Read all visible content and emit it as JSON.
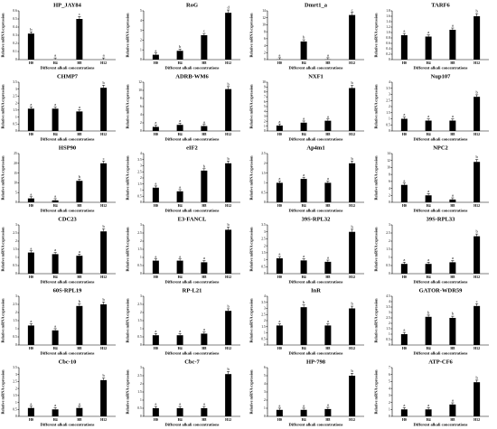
{
  "common": {
    "ylabel": "Relative mRNA expression",
    "xlabel": "Different alkali concentrations",
    "categories": [
      "H0",
      "H4",
      "H8",
      "H12"
    ]
  },
  "chart_data": [
    {
      "type": "bar",
      "title": "HP_JAY84",
      "ylim": [
        0,
        0.6
      ],
      "yticks": [
        "0",
        "0.1",
        "0.2",
        "0.3",
        "0.4",
        "0.5",
        "0.6"
      ],
      "values": [
        0.32,
        0.0,
        0.5,
        0.0
      ],
      "letters": [
        "b",
        "a",
        "c",
        "a"
      ]
    },
    {
      "type": "bar",
      "title": "RoG",
      "ylim": [
        0,
        5
      ],
      "yticks": [
        "0",
        "1",
        "2",
        "3",
        "4",
        "5"
      ],
      "values": [
        0.5,
        0.9,
        2.5,
        4.8
      ],
      "letters": [
        "a",
        "b",
        "c",
        "d"
      ]
    },
    {
      "type": "bar",
      "title": "Dmrt1_a",
      "ylim": [
        0,
        14
      ],
      "yticks": [
        "0",
        "2",
        "4",
        "6",
        "8",
        "10",
        "12",
        "14"
      ],
      "values": [
        0.05,
        5.2,
        0.05,
        12.8
      ],
      "letters": [
        "a",
        "b",
        "a",
        "c"
      ]
    },
    {
      "type": "bar",
      "title": "TARF6",
      "ylim": [
        0,
        1.8
      ],
      "yticks": [
        "0",
        "0.2",
        "0.4",
        "0.6",
        "0.8",
        "1.0",
        "1.2",
        "1.4",
        "1.6",
        "1.8"
      ],
      "values": [
        0.9,
        0.85,
        1.1,
        1.6
      ],
      "letters": [
        "a",
        "a",
        "a",
        "b"
      ]
    },
    {
      "type": "bar",
      "title": "CHMP7",
      "ylim": [
        0,
        3.5
      ],
      "yticks": [
        "0",
        "0.5",
        "1",
        "1.5",
        "2",
        "2.5",
        "3",
        "3.5"
      ],
      "values": [
        1.6,
        1.6,
        1.4,
        3.1
      ],
      "letters": [
        "a",
        "a",
        "a",
        "b"
      ]
    },
    {
      "type": "bar",
      "title": "ADRB-WM6",
      "ylim": [
        0,
        12
      ],
      "yticks": [
        "0",
        "2",
        "4",
        "6",
        "8",
        "10",
        "12"
      ],
      "values": [
        1.0,
        1.5,
        1.2,
        10.3
      ],
      "letters": [
        "a",
        "a",
        "a",
        "b"
      ]
    },
    {
      "type": "bar",
      "title": "NXF1",
      "ylim": [
        0,
        10
      ],
      "yticks": [
        "0",
        "1",
        "2",
        "3",
        "4",
        "5",
        "6",
        "7",
        "8",
        "9",
        "10"
      ],
      "values": [
        1.1,
        1.7,
        2.1,
        8.8
      ],
      "letters": [
        "a",
        "a",
        "a",
        "b"
      ]
    },
    {
      "type": "bar",
      "title": "Nup107",
      "ylim": [
        0,
        4
      ],
      "yticks": [
        "0",
        "0.5",
        "1",
        "1.5",
        "2",
        "2.5",
        "3",
        "3.5",
        "4"
      ],
      "values": [
        1.0,
        0.85,
        0.85,
        2.8
      ],
      "letters": [
        "a",
        "a",
        "a",
        "b"
      ]
    },
    {
      "type": "bar",
      "title": "HSP90",
      "ylim": [
        0,
        25
      ],
      "yticks": [
        "0",
        "5",
        "10",
        "15",
        "20",
        "25"
      ],
      "values": [
        2.0,
        1.0,
        11.0,
        20.0
      ],
      "letters": [
        "a",
        "a",
        "b",
        "c"
      ]
    },
    {
      "type": "bar",
      "title": "eIF2",
      "ylim": [
        0,
        4
      ],
      "yticks": [
        "0",
        "0.5",
        "1",
        "1.5",
        "2",
        "2.5",
        "3",
        "3.5",
        "4"
      ],
      "values": [
        1.2,
        0.9,
        2.6,
        3.2
      ],
      "letters": [
        "a",
        "a",
        "b",
        "b"
      ]
    },
    {
      "type": "bar",
      "title": "Ap4m1",
      "ylim": [
        0,
        2.5
      ],
      "yticks": [
        "0",
        "0.5",
        "1",
        "1.5",
        "2",
        "2.5"
      ],
      "values": [
        1.0,
        1.2,
        1.0,
        2.0
      ],
      "letters": [
        "a",
        "a",
        "a",
        "b"
      ]
    },
    {
      "type": "bar",
      "title": "NPC2",
      "ylim": [
        0,
        14
      ],
      "yticks": [
        "0",
        "2",
        "4",
        "6",
        "8",
        "10",
        "12",
        "14"
      ],
      "values": [
        5.0,
        2.0,
        0.8,
        11.6
      ],
      "letters": [
        "a",
        "a",
        "a",
        "b"
      ]
    },
    {
      "type": "bar",
      "title": "CDC23",
      "ylim": [
        0,
        3
      ],
      "yticks": [
        "0",
        "0.5",
        "1",
        "1.5",
        "2",
        "2.5",
        "3"
      ],
      "values": [
        1.3,
        1.2,
        1.1,
        2.6
      ],
      "letters": [
        "a",
        "a",
        "a",
        "b"
      ]
    },
    {
      "type": "bar",
      "title": "E3-FANCL",
      "ylim": [
        0,
        3
      ],
      "yticks": [
        "0",
        "0.5",
        "1",
        "1.5",
        "2",
        "2.5",
        "3"
      ],
      "values": [
        0.8,
        0.8,
        0.7,
        2.7
      ],
      "letters": [
        "a",
        "a",
        "a",
        "b"
      ]
    },
    {
      "type": "bar",
      "title": "39S-RPL32",
      "ylim": [
        0,
        3.5
      ],
      "yticks": [
        "0",
        "0.5",
        "1",
        "1.5",
        "2",
        "2.5",
        "3",
        "3.5"
      ],
      "values": [
        1.1,
        0.95,
        0.85,
        3.0
      ],
      "letters": [
        "a",
        "a",
        "a",
        "b"
      ]
    },
    {
      "type": "bar",
      "title": "39S-RPL33",
      "ylim": [
        0,
        3
      ],
      "yticks": [
        "0",
        "0.5",
        "1",
        "1.5",
        "2",
        "2.5",
        "3"
      ],
      "values": [
        0.6,
        0.6,
        0.7,
        2.3
      ],
      "letters": [
        "a",
        "a",
        "a",
        "b"
      ]
    },
    {
      "type": "bar",
      "title": "60S-RPL19",
      "ylim": [
        0,
        3
      ],
      "yticks": [
        "0",
        "0.5",
        "1",
        "1.5",
        "2",
        "2.5",
        "3"
      ],
      "values": [
        1.2,
        0.9,
        2.4,
        2.5
      ],
      "letters": [
        "a",
        "a",
        "b",
        "b"
      ]
    },
    {
      "type": "bar",
      "title": "RP-L21",
      "ylim": [
        0,
        3
      ],
      "yticks": [
        "0",
        "0.5",
        "1",
        "1.5",
        "2",
        "2.5",
        "3"
      ],
      "values": [
        0.6,
        0.6,
        0.7,
        2.1
      ],
      "letters": [
        "a",
        "a",
        "a",
        "b"
      ]
    },
    {
      "type": "bar",
      "title": "InR",
      "ylim": [
        0,
        4
      ],
      "yticks": [
        "0",
        "0.5",
        "1",
        "1.5",
        "2",
        "2.5",
        "3",
        "3.5",
        "4"
      ],
      "values": [
        1.6,
        3.1,
        1.6,
        3.0
      ],
      "letters": [
        "a",
        "b",
        "a",
        "b"
      ]
    },
    {
      "type": "bar",
      "title": "GATOR-WDR59",
      "ylim": [
        0,
        4.5
      ],
      "yticks": [
        "0",
        "0.5",
        "1",
        "1.5",
        "2",
        "2.5",
        "3",
        "3.5",
        "4",
        "4.5"
      ],
      "values": [
        1.0,
        2.6,
        2.5,
        3.6
      ],
      "letters": [
        "a",
        "b",
        "b",
        "c"
      ]
    },
    {
      "type": "bar",
      "title": "Cbc-10",
      "ylim": [
        0,
        3.5
      ],
      "yticks": [
        "0",
        "0.5",
        "1",
        "1.5",
        "2",
        "2.5",
        "3",
        "3.5"
      ],
      "values": [
        0.6,
        0.5,
        0.6,
        2.6
      ],
      "letters": [
        "a",
        "a",
        "a",
        "b"
      ]
    },
    {
      "type": "bar",
      "title": "Cbc-7",
      "ylim": [
        0,
        3
      ],
      "yticks": [
        "0",
        "0.5",
        "1",
        "1.5",
        "2",
        "2.5",
        "3"
      ],
      "values": [
        0.5,
        0.5,
        0.5,
        2.6
      ],
      "letters": [
        "a",
        "a",
        "a",
        "b"
      ]
    },
    {
      "type": "bar",
      "title": "HP-798",
      "ylim": [
        0,
        6
      ],
      "yticks": [
        "0",
        "1",
        "2",
        "3",
        "4",
        "5",
        "6"
      ],
      "values": [
        0.8,
        0.8,
        0.9,
        5.0
      ],
      "letters": [
        "a",
        "a",
        "a",
        "b"
      ]
    },
    {
      "type": "bar",
      "title": "ATP-CF6",
      "ylim": [
        0,
        7
      ],
      "yticks": [
        "0",
        "1",
        "2",
        "3",
        "4",
        "5",
        "6",
        "7"
      ],
      "values": [
        1.0,
        1.0,
        1.7,
        4.9
      ],
      "letters": [
        "a",
        "a",
        "a",
        "b"
      ]
    }
  ]
}
